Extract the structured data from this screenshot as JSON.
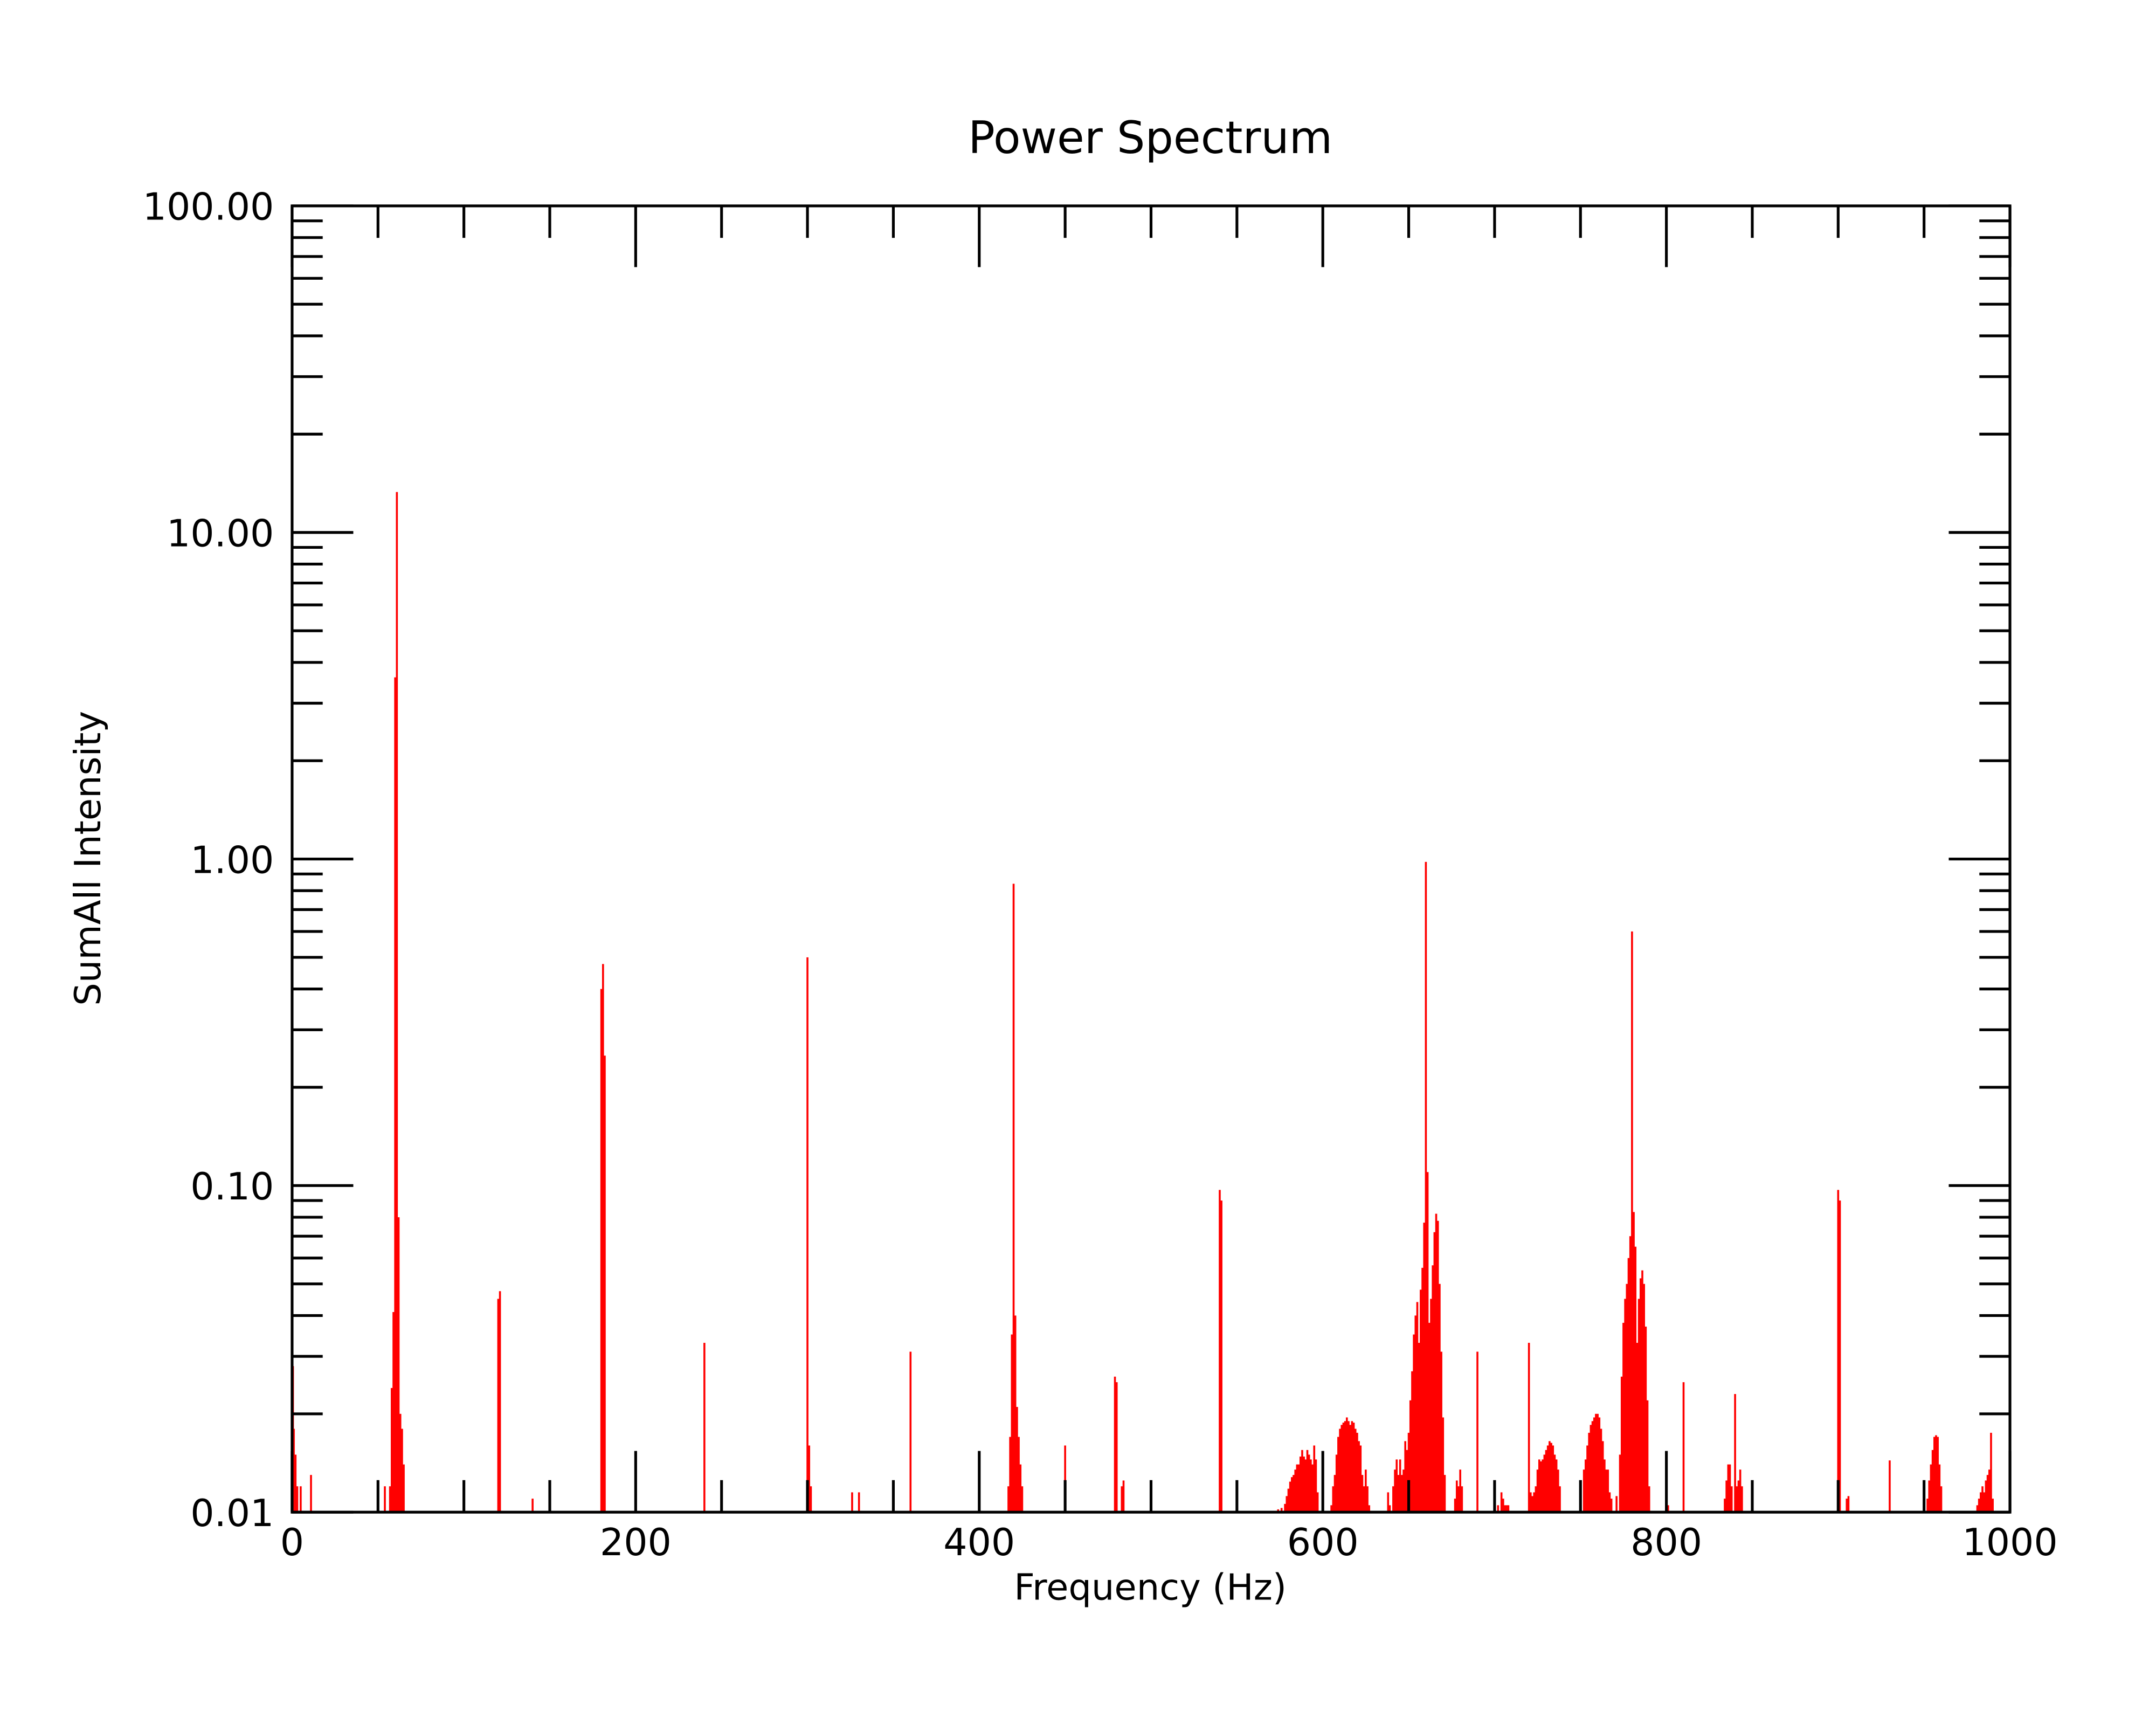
{
  "chart_data": {
    "type": "bar",
    "title": "Power Spectrum",
    "xlabel": "Frequency (Hz)",
    "ylabel": "SumAll Intensity",
    "xlim": [
      0,
      1000
    ],
    "ylim": [
      0.01,
      100
    ],
    "yscale": "log",
    "grid": false,
    "legend": "none",
    "bar_color": "#ff0000",
    "axis_color": "#000000",
    "x_ticks": [
      "0",
      "200",
      "400",
      "600",
      "800",
      "1000"
    ],
    "y_ticks": [
      "0.01",
      "0.10",
      "1.00",
      "10.00",
      "100.00"
    ],
    "points": [
      [
        0.5,
        0.028
      ],
      [
        1,
        0.018
      ],
      [
        2,
        0.015
      ],
      [
        3,
        0.012
      ],
      [
        5,
        0.012
      ],
      [
        11,
        0.013
      ],
      [
        54,
        0.012
      ],
      [
        57,
        0.012
      ],
      [
        58,
        0.024
      ],
      [
        59,
        0.041
      ],
      [
        60,
        3.6
      ],
      [
        61,
        13.3
      ],
      [
        62,
        0.08
      ],
      [
        63,
        0.02
      ],
      [
        64,
        0.018
      ],
      [
        65,
        0.014
      ],
      [
        120,
        0.045
      ],
      [
        121,
        0.0475
      ],
      [
        140,
        0.011
      ],
      [
        180,
        0.4
      ],
      [
        181,
        0.477
      ],
      [
        182,
        0.25
      ],
      [
        240,
        0.033
      ],
      [
        300,
        0.5
      ],
      [
        301,
        0.016
      ],
      [
        302,
        0.012
      ],
      [
        326,
        0.0115
      ],
      [
        330,
        0.0115
      ],
      [
        360,
        0.031
      ],
      [
        417,
        0.012
      ],
      [
        418,
        0.017
      ],
      [
        419,
        0.035
      ],
      [
        420,
        0.84
      ],
      [
        421,
        0.04
      ],
      [
        422,
        0.021
      ],
      [
        423,
        0.017
      ],
      [
        424,
        0.014
      ],
      [
        425,
        0.012
      ],
      [
        450,
        0.016
      ],
      [
        479,
        0.026
      ],
      [
        480,
        0.025
      ],
      [
        483,
        0.012
      ],
      [
        484,
        0.0125
      ],
      [
        540,
        0.097
      ],
      [
        541,
        0.09
      ],
      [
        574,
        0.0102
      ],
      [
        576,
        0.0103
      ],
      [
        578,
        0.0106
      ],
      [
        579,
        0.0112
      ],
      [
        580,
        0.0118
      ],
      [
        581,
        0.0124
      ],
      [
        582,
        0.0128
      ],
      [
        583,
        0.013
      ],
      [
        584,
        0.0135
      ],
      [
        585,
        0.014
      ],
      [
        586,
        0.014
      ],
      [
        587,
        0.0148
      ],
      [
        588,
        0.0155
      ],
      [
        589,
        0.0148
      ],
      [
        590,
        0.0145
      ],
      [
        591,
        0.0155
      ],
      [
        592,
        0.015
      ],
      [
        593,
        0.0145
      ],
      [
        594,
        0.014
      ],
      [
        595,
        0.016
      ],
      [
        596,
        0.0145
      ],
      [
        597,
        0.0115
      ],
      [
        605,
        0.0105
      ],
      [
        606,
        0.012
      ],
      [
        607,
        0.013
      ],
      [
        608,
        0.015
      ],
      [
        609,
        0.017
      ],
      [
        610,
        0.018
      ],
      [
        611,
        0.0185
      ],
      [
        612,
        0.0188
      ],
      [
        613,
        0.019
      ],
      [
        614,
        0.0195
      ],
      [
        615,
        0.019
      ],
      [
        616,
        0.0185
      ],
      [
        617,
        0.019
      ],
      [
        618,
        0.0188
      ],
      [
        619,
        0.018
      ],
      [
        620,
        0.0175
      ],
      [
        621,
        0.0165
      ],
      [
        622,
        0.016
      ],
      [
        623,
        0.013
      ],
      [
        624,
        0.012
      ],
      [
        625,
        0.0135
      ],
      [
        626,
        0.012
      ],
      [
        627,
        0.0105
      ],
      [
        638,
        0.0115
      ],
      [
        639,
        0.0105
      ],
      [
        641,
        0.012
      ],
      [
        642,
        0.0135
      ],
      [
        643,
        0.0145
      ],
      [
        644,
        0.013
      ],
      [
        645,
        0.0145
      ],
      [
        646,
        0.013
      ],
      [
        647,
        0.0135
      ],
      [
        648,
        0.0165
      ],
      [
        649,
        0.0155
      ],
      [
        650,
        0.0175
      ],
      [
        651,
        0.022
      ],
      [
        652,
        0.027
      ],
      [
        653,
        0.035
      ],
      [
        654,
        0.04
      ],
      [
        655,
        0.044
      ],
      [
        656,
        0.033
      ],
      [
        657,
        0.048
      ],
      [
        658,
        0.056
      ],
      [
        659,
        0.077
      ],
      [
        660,
        0.98
      ],
      [
        661,
        0.11
      ],
      [
        662,
        0.038
      ],
      [
        663,
        0.045
      ],
      [
        664,
        0.057
      ],
      [
        665,
        0.072
      ],
      [
        666,
        0.082
      ],
      [
        667,
        0.078
      ],
      [
        668,
        0.05
      ],
      [
        669,
        0.031
      ],
      [
        670,
        0.0195
      ],
      [
        671,
        0.013
      ],
      [
        677,
        0.011
      ],
      [
        678,
        0.0125
      ],
      [
        679,
        0.012
      ],
      [
        680,
        0.0135
      ],
      [
        681,
        0.012
      ],
      [
        690,
        0.031
      ],
      [
        702,
        0.0105
      ],
      [
        704,
        0.0115
      ],
      [
        705,
        0.011
      ],
      [
        706,
        0.0105
      ],
      [
        707,
        0.0105
      ],
      [
        708,
        0.0105
      ],
      [
        720,
        0.033
      ],
      [
        721,
        0.0115
      ],
      [
        722,
        0.0112
      ],
      [
        723,
        0.0115
      ],
      [
        724,
        0.012
      ],
      [
        725,
        0.0135
      ],
      [
        726,
        0.0145
      ],
      [
        727,
        0.0143
      ],
      [
        728,
        0.0145
      ],
      [
        729,
        0.015
      ],
      [
        730,
        0.0155
      ],
      [
        731,
        0.016
      ],
      [
        732,
        0.0165
      ],
      [
        733,
        0.0163
      ],
      [
        734,
        0.016
      ],
      [
        735,
        0.015
      ],
      [
        736,
        0.0145
      ],
      [
        737,
        0.0135
      ],
      [
        738,
        0.012
      ],
      [
        752,
        0.0135
      ],
      [
        753,
        0.0145
      ],
      [
        754,
        0.016
      ],
      [
        755,
        0.0175
      ],
      [
        756,
        0.0185
      ],
      [
        757,
        0.019
      ],
      [
        758,
        0.0195
      ],
      [
        759,
        0.02
      ],
      [
        760,
        0.02
      ],
      [
        761,
        0.0195
      ],
      [
        762,
        0.018
      ],
      [
        763,
        0.0165
      ],
      [
        764,
        0.0145
      ],
      [
        765,
        0.0135
      ],
      [
        766,
        0.0135
      ],
      [
        767,
        0.0115
      ],
      [
        768,
        0.011
      ],
      [
        771,
        0.0112
      ],
      [
        773,
        0.015
      ],
      [
        774,
        0.026
      ],
      [
        775,
        0.038
      ],
      [
        776,
        0.045
      ],
      [
        777,
        0.05
      ],
      [
        778,
        0.06
      ],
      [
        779,
        0.07
      ],
      [
        780,
        0.6
      ],
      [
        781,
        0.083
      ],
      [
        782,
        0.065
      ],
      [
        783,
        0.033
      ],
      [
        784,
        0.045
      ],
      [
        785,
        0.052
      ],
      [
        786,
        0.055
      ],
      [
        787,
        0.05
      ],
      [
        788,
        0.037
      ],
      [
        789,
        0.022
      ],
      [
        790,
        0.012
      ],
      [
        800,
        0.011
      ],
      [
        801,
        0.0105
      ],
      [
        810,
        0.025
      ],
      [
        834,
        0.011
      ],
      [
        835,
        0.0125
      ],
      [
        836,
        0.014
      ],
      [
        837,
        0.014
      ],
      [
        838,
        0.012
      ],
      [
        840,
        0.023
      ],
      [
        841,
        0.012
      ],
      [
        842,
        0.0125
      ],
      [
        843,
        0.0135
      ],
      [
        844,
        0.012
      ],
      [
        900,
        0.097
      ],
      [
        901,
        0.09
      ],
      [
        905,
        0.011
      ],
      [
        906,
        0.0112
      ],
      [
        930,
        0.0144
      ],
      [
        950,
        0.0105
      ],
      [
        952,
        0.011
      ],
      [
        953,
        0.0125
      ],
      [
        954,
        0.014
      ],
      [
        955,
        0.0155
      ],
      [
        956,
        0.017
      ],
      [
        957,
        0.0172
      ],
      [
        958,
        0.017
      ],
      [
        959,
        0.014
      ],
      [
        960,
        0.012
      ],
      [
        981,
        0.0105
      ],
      [
        982,
        0.011
      ],
      [
        983,
        0.0115
      ],
      [
        984,
        0.012
      ],
      [
        985,
        0.0115
      ],
      [
        986,
        0.0125
      ],
      [
        987,
        0.013
      ],
      [
        988,
        0.0135
      ],
      [
        989,
        0.0175
      ],
      [
        990,
        0.011
      ]
    ]
  }
}
